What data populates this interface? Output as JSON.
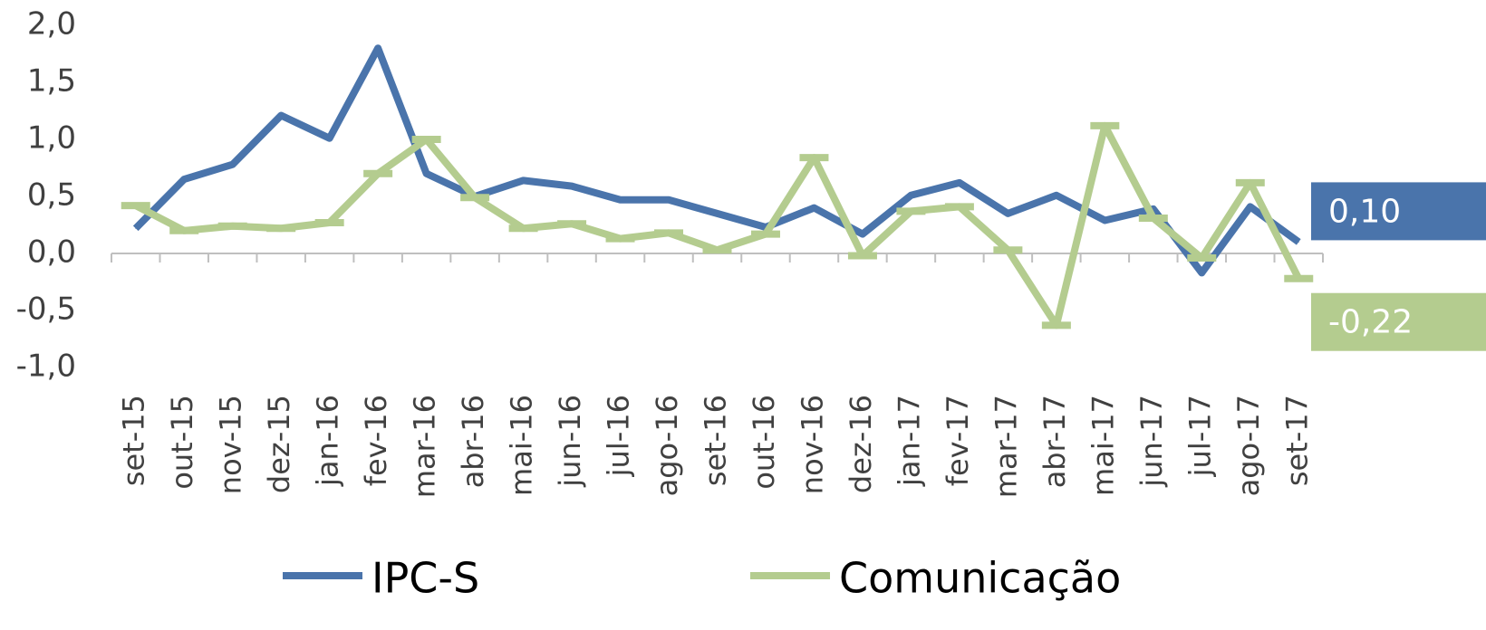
{
  "chart_data": {
    "type": "line",
    "categories": [
      "set-15",
      "out-15",
      "nov-15",
      "dez-15",
      "jan-16",
      "fev-16",
      "mar-16",
      "abr-16",
      "mai-16",
      "jun-16",
      "jul-16",
      "ago-16",
      "set-16",
      "out-16",
      "nov-16",
      "dez-16",
      "jan-17",
      "fev-17",
      "mar-17",
      "abr-17",
      "mai-17",
      "jun-17",
      "jul-17",
      "ago-17",
      "set-17"
    ],
    "series": [
      {
        "name": "IPC-S",
        "color": "#4a74ab",
        "values": [
          0.22,
          0.65,
          0.78,
          1.21,
          1.01,
          1.8,
          0.7,
          0.5,
          0.64,
          0.59,
          0.47,
          0.47,
          0.35,
          0.23,
          0.4,
          0.17,
          0.51,
          0.62,
          0.35,
          0.51,
          0.29,
          0.39,
          -0.17,
          0.41,
          0.1
        ],
        "value_labels": [
          null,
          null,
          null,
          null,
          null,
          null,
          null,
          null,
          null,
          null,
          null,
          null,
          null,
          null,
          null,
          null,
          null,
          null,
          null,
          null,
          null,
          null,
          null,
          null,
          "0,10"
        ]
      },
      {
        "name": "Comunicação",
        "color": "#b4cc8f",
        "values": [
          0.42,
          0.2,
          0.24,
          0.22,
          0.27,
          0.7,
          1.0,
          0.49,
          0.22,
          0.26,
          0.13,
          0.18,
          0.03,
          0.17,
          0.84,
          -0.02,
          0.37,
          0.41,
          0.03,
          -0.63,
          1.12,
          0.31,
          -0.04,
          0.62,
          -0.22
        ],
        "value_labels": [
          null,
          null,
          null,
          null,
          null,
          null,
          null,
          null,
          null,
          null,
          null,
          null,
          null,
          null,
          null,
          null,
          null,
          null,
          null,
          null,
          null,
          null,
          null,
          null,
          "-0,22"
        ]
      }
    ],
    "ylim": [
      -1,
      2
    ],
    "yticks": [
      {
        "value": -1,
        "label": "-1,0"
      },
      {
        "value": -0.5,
        "label": "-0,5"
      },
      {
        "value": 0,
        "label": "0,0"
      },
      {
        "value": 0.5,
        "label": "0,5"
      },
      {
        "value": 1,
        "label": "1,0"
      },
      {
        "value": 1.5,
        "label": "1,5"
      },
      {
        "value": 2,
        "label": "2,0"
      }
    ],
    "grid": false
  }
}
